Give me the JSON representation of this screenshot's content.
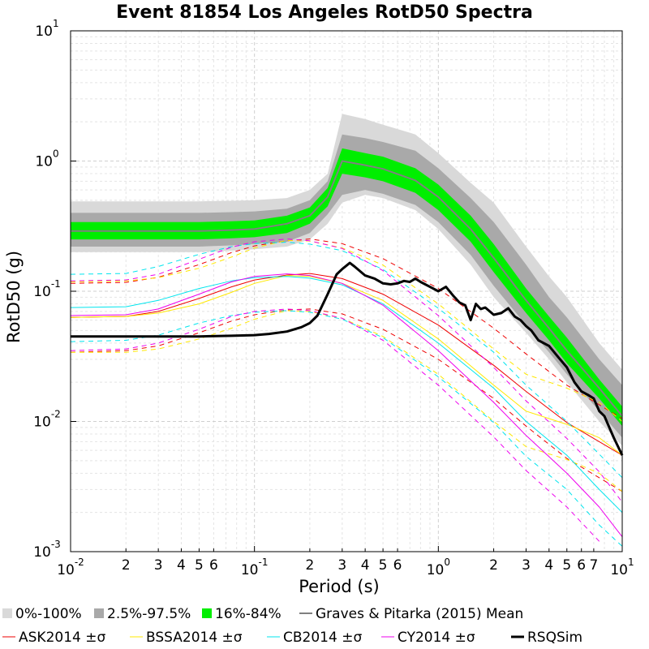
{
  "chart_data": {
    "type": "line",
    "title": "Event 81854 Los Angeles RotD50 Spectra",
    "xlabel": "Period (s)",
    "ylabel": "RotD50 (g)",
    "xscale": "log",
    "yscale": "log",
    "xlim": [
      0.01,
      10
    ],
    "ylim": [
      0.001,
      10
    ],
    "grid": true,
    "legend_position": "bottom",
    "x_major_ticks": [
      {
        "base": "10",
        "exp": "-2"
      },
      {
        "base": "10",
        "exp": "-1"
      },
      {
        "base": "10",
        "exp": "0"
      },
      {
        "base": "10",
        "exp": "1"
      }
    ],
    "y_major_ticks": [
      {
        "base": "10",
        "exp": "-3"
      },
      {
        "base": "10",
        "exp": "-2"
      },
      {
        "base": "10",
        "exp": "-1"
      },
      {
        "base": "10",
        "exp": "0"
      },
      {
        "base": "10",
        "exp": "1"
      }
    ],
    "x_minor_labels": [
      "2",
      "3",
      "4",
      "5",
      "6"
    ],
    "x_minor_labels_decade1": [
      "2",
      "3",
      "4",
      "5",
      "6"
    ],
    "x_minor_labels_decade2": [
      "2",
      "3",
      "4",
      "5",
      "6",
      "7"
    ],
    "x_minor_labels_decade3": [
      "2",
      "3",
      "4",
      "5",
      "6",
      "7"
    ],
    "periods": [
      0.01,
      0.02,
      0.03,
      0.05,
      0.075,
      0.1,
      0.15,
      0.2,
      0.25,
      0.3,
      0.4,
      0.5,
      0.75,
      1.0,
      1.5,
      2.0,
      3.0,
      4.0,
      5.0,
      7.5,
      10.0
    ],
    "bands": [
      {
        "name": "0%-100%",
        "color": "#d9d9d9",
        "lower": [
          0.2,
          0.2,
          0.2,
          0.2,
          0.205,
          0.21,
          0.22,
          0.25,
          0.33,
          0.48,
          0.55,
          0.52,
          0.42,
          0.3,
          0.16,
          0.09,
          0.048,
          0.03,
          0.02,
          0.01,
          0.0065
        ],
        "upper": [
          0.49,
          0.49,
          0.49,
          0.49,
          0.495,
          0.5,
          0.52,
          0.6,
          0.8,
          2.3,
          2.1,
          1.9,
          1.6,
          1.15,
          0.68,
          0.48,
          0.22,
          0.13,
          0.09,
          0.04,
          0.025
        ]
      },
      {
        "name": "2.5%-97.5%",
        "color": "#a9a9a9",
        "lower": [
          0.22,
          0.22,
          0.22,
          0.22,
          0.225,
          0.23,
          0.24,
          0.28,
          0.39,
          0.55,
          0.6,
          0.56,
          0.46,
          0.34,
          0.19,
          0.11,
          0.055,
          0.034,
          0.023,
          0.012,
          0.0075
        ],
        "upper": [
          0.4,
          0.4,
          0.4,
          0.4,
          0.405,
          0.41,
          0.43,
          0.5,
          0.7,
          1.6,
          1.5,
          1.4,
          1.2,
          0.88,
          0.52,
          0.34,
          0.16,
          0.09,
          0.063,
          0.03,
          0.019
        ]
      },
      {
        "name": "16%-84%",
        "color": "#00ee00",
        "lower": [
          0.25,
          0.25,
          0.25,
          0.25,
          0.255,
          0.26,
          0.28,
          0.33,
          0.45,
          0.8,
          0.75,
          0.7,
          0.57,
          0.42,
          0.24,
          0.14,
          0.068,
          0.042,
          0.028,
          0.015,
          0.0092
        ],
        "upper": [
          0.34,
          0.34,
          0.34,
          0.34,
          0.345,
          0.35,
          0.38,
          0.44,
          0.62,
          1.25,
          1.15,
          1.08,
          0.88,
          0.66,
          0.38,
          0.23,
          0.105,
          0.064,
          0.044,
          0.021,
          0.013
        ]
      }
    ],
    "series": [
      {
        "name": "Graves & Pitarka (2015) Mean",
        "color": "#808080",
        "width": 2,
        "dash": "",
        "x": [
          0.01,
          0.02,
          0.03,
          0.05,
          0.075,
          0.1,
          0.15,
          0.2,
          0.25,
          0.3,
          0.4,
          0.5,
          0.75,
          1.0,
          1.5,
          2.0,
          3.0,
          4.0,
          5.0,
          7.5,
          10.0
        ],
        "y": [
          0.29,
          0.29,
          0.29,
          0.29,
          0.295,
          0.3,
          0.33,
          0.38,
          0.53,
          1.0,
          0.93,
          0.87,
          0.71,
          0.53,
          0.3,
          0.18,
          0.085,
          0.052,
          0.035,
          0.018,
          0.011
        ]
      },
      {
        "name": "ASK2014 ±σ",
        "color": "#ee0000",
        "width": 1,
        "dash": "",
        "x": [
          0.01,
          0.02,
          0.03,
          0.05,
          0.075,
          0.1,
          0.15,
          0.2,
          0.3,
          0.5,
          1.0,
          2.0,
          3.0,
          5.0,
          10.0
        ],
        "y": [
          0.063,
          0.064,
          0.07,
          0.088,
          0.108,
          0.122,
          0.133,
          0.137,
          0.125,
          0.095,
          0.055,
          0.027,
          0.017,
          0.0098,
          0.0055
        ]
      },
      {
        "name": "ASK2014 +σ",
        "color": "#ee0000",
        "width": 1,
        "dash": "6,5",
        "x": [
          0.01,
          0.02,
          0.03,
          0.05,
          0.075,
          0.1,
          0.15,
          0.2,
          0.3,
          0.5,
          1.0,
          2.0,
          3.0,
          5.0,
          10.0
        ],
        "y": [
          0.115,
          0.117,
          0.128,
          0.16,
          0.198,
          0.223,
          0.244,
          0.252,
          0.232,
          0.178,
          0.105,
          0.052,
          0.033,
          0.019,
          0.0105
        ]
      },
      {
        "name": "ASK2014 -σ",
        "color": "#ee0000",
        "width": 1,
        "dash": "6,5",
        "x": [
          0.01,
          0.02,
          0.03,
          0.05,
          0.075,
          0.1,
          0.15,
          0.2,
          0.3,
          0.5,
          1.0,
          2.0,
          3.0,
          5.0,
          10.0
        ],
        "y": [
          0.034,
          0.035,
          0.038,
          0.048,
          0.059,
          0.066,
          0.072,
          0.073,
          0.067,
          0.051,
          0.03,
          0.015,
          0.0092,
          0.0052,
          0.0029
        ]
      },
      {
        "name": "BSSA2014 ±σ",
        "color": "#ffe800",
        "width": 1,
        "dash": "",
        "x": [
          0.01,
          0.02,
          0.03,
          0.05,
          0.075,
          0.1,
          0.15,
          0.2,
          0.3,
          0.5,
          1.0,
          2.0,
          3.0,
          5.0,
          7.5,
          10.0
        ],
        "y": [
          0.063,
          0.064,
          0.068,
          0.08,
          0.098,
          0.115,
          0.132,
          0.13,
          0.115,
          0.085,
          0.043,
          0.019,
          0.012,
          0.0095,
          0.0075,
          0.0055
        ]
      },
      {
        "name": "BSSA2014 +σ",
        "color": "#ffe800",
        "width": 1,
        "dash": "6,5",
        "x": [
          0.01,
          0.02,
          0.03,
          0.05,
          0.075,
          0.1,
          0.15,
          0.2,
          0.3,
          0.5,
          1.0,
          2.0,
          3.0,
          5.0,
          7.5,
          10.0
        ],
        "y": [
          0.118,
          0.12,
          0.127,
          0.15,
          0.183,
          0.215,
          0.246,
          0.243,
          0.215,
          0.159,
          0.08,
          0.036,
          0.023,
          0.018,
          0.014,
          0.01
        ]
      },
      {
        "name": "BSSA2014 -σ",
        "color": "#ffe800",
        "width": 1,
        "dash": "6,5",
        "x": [
          0.01,
          0.02,
          0.03,
          0.05,
          0.075,
          0.1,
          0.15,
          0.2,
          0.3,
          0.5,
          1.0,
          2.0,
          3.0,
          5.0,
          7.5,
          10.0
        ],
        "y": [
          0.034,
          0.034,
          0.036,
          0.043,
          0.052,
          0.061,
          0.071,
          0.07,
          0.062,
          0.045,
          0.023,
          0.01,
          0.0064,
          0.0051,
          0.004,
          0.0029
        ]
      },
      {
        "name": "CB2014 ±σ",
        "color": "#00e5ee",
        "width": 1,
        "dash": "",
        "x": [
          0.01,
          0.02,
          0.03,
          0.05,
          0.075,
          0.1,
          0.15,
          0.2,
          0.3,
          0.5,
          1.0,
          2.0,
          3.0,
          5.0,
          7.5,
          10.0
        ],
        "y": [
          0.075,
          0.076,
          0.085,
          0.105,
          0.12,
          0.127,
          0.13,
          0.126,
          0.112,
          0.08,
          0.04,
          0.018,
          0.01,
          0.0055,
          0.003,
          0.002
        ]
      },
      {
        "name": "CB2014 +σ",
        "color": "#00e5ee",
        "width": 1,
        "dash": "6,5",
        "x": [
          0.01,
          0.02,
          0.03,
          0.05,
          0.075,
          0.1,
          0.15,
          0.2,
          0.3,
          0.5,
          1.0,
          2.0,
          3.0,
          5.0,
          7.5,
          10.0
        ],
        "y": [
          0.135,
          0.137,
          0.155,
          0.192,
          0.22,
          0.232,
          0.238,
          0.23,
          0.205,
          0.147,
          0.074,
          0.034,
          0.019,
          0.01,
          0.0056,
          0.0037
        ]
      },
      {
        "name": "CB2014 -σ",
        "color": "#00e5ee",
        "width": 1,
        "dash": "6,5",
        "x": [
          0.01,
          0.02,
          0.03,
          0.05,
          0.075,
          0.1,
          0.15,
          0.2,
          0.3,
          0.5,
          1.0,
          2.0,
          3.0,
          5.0,
          7.5,
          10.0
        ],
        "y": [
          0.041,
          0.042,
          0.046,
          0.057,
          0.065,
          0.069,
          0.071,
          0.069,
          0.061,
          0.044,
          0.022,
          0.0098,
          0.0054,
          0.003,
          0.0016,
          0.0011
        ]
      },
      {
        "name": "CY2014 ±σ",
        "color": "#ee00ee",
        "width": 1,
        "dash": "",
        "x": [
          0.01,
          0.02,
          0.03,
          0.05,
          0.075,
          0.1,
          0.15,
          0.2,
          0.3,
          0.5,
          1.0,
          2.0,
          3.0,
          5.0,
          7.5,
          10.0
        ],
        "y": [
          0.065,
          0.066,
          0.073,
          0.095,
          0.118,
          0.13,
          0.136,
          0.132,
          0.115,
          0.078,
          0.035,
          0.014,
          0.0078,
          0.004,
          0.0022,
          0.0013
        ]
      },
      {
        "name": "CY2014 +σ",
        "color": "#ee00ee",
        "width": 1,
        "dash": "6,5",
        "x": [
          0.01,
          0.02,
          0.03,
          0.05,
          0.075,
          0.1,
          0.15,
          0.2,
          0.3,
          0.5,
          1.0,
          2.0,
          3.0,
          5.0,
          7.5,
          10.0
        ],
        "y": [
          0.12,
          0.122,
          0.135,
          0.176,
          0.218,
          0.24,
          0.252,
          0.244,
          0.213,
          0.144,
          0.065,
          0.026,
          0.0144,
          0.0074,
          0.0041,
          0.0024
        ]
      },
      {
        "name": "CY2014 -σ",
        "color": "#ee00ee",
        "width": 1,
        "dash": "6,5",
        "x": [
          0.01,
          0.02,
          0.03,
          0.05,
          0.075,
          0.1,
          0.15,
          0.2,
          0.3,
          0.5,
          1.0,
          2.0,
          3.0,
          5.0,
          7.5,
          10.0
        ],
        "y": [
          0.035,
          0.036,
          0.04,
          0.051,
          0.064,
          0.07,
          0.073,
          0.071,
          0.062,
          0.042,
          0.019,
          0.0076,
          0.0042,
          0.0022,
          0.0012,
          0.0007
        ]
      },
      {
        "name": "RSQSim",
        "color": "#000000",
        "width": 3,
        "dash": "",
        "x": [
          0.01,
          0.02,
          0.03,
          0.05,
          0.075,
          0.1,
          0.12,
          0.15,
          0.18,
          0.2,
          0.22,
          0.25,
          0.28,
          0.3,
          0.33,
          0.35,
          0.4,
          0.45,
          0.5,
          0.55,
          0.6,
          0.65,
          0.7,
          0.75,
          0.8,
          0.9,
          1.0,
          1.1,
          1.2,
          1.3,
          1.4,
          1.5,
          1.6,
          1.7,
          1.8,
          2.0,
          2.2,
          2.4,
          2.6,
          2.8,
          3.0,
          3.2,
          3.5,
          4.0,
          4.5,
          5.0,
          5.5,
          6.0,
          6.5,
          7.0,
          7.5,
          8.0,
          9.0,
          10.0
        ],
        "y": [
          0.045,
          0.045,
          0.045,
          0.045,
          0.0455,
          0.046,
          0.047,
          0.049,
          0.053,
          0.057,
          0.065,
          0.095,
          0.135,
          0.148,
          0.165,
          0.155,
          0.132,
          0.125,
          0.115,
          0.113,
          0.115,
          0.12,
          0.118,
          0.125,
          0.118,
          0.108,
          0.1,
          0.108,
          0.093,
          0.082,
          0.078,
          0.06,
          0.08,
          0.073,
          0.075,
          0.066,
          0.068,
          0.074,
          0.064,
          0.06,
          0.054,
          0.05,
          0.042,
          0.038,
          0.031,
          0.026,
          0.02,
          0.017,
          0.016,
          0.015,
          0.012,
          0.011,
          0.0075,
          0.0055
        ]
      }
    ],
    "legend": {
      "row1": [
        {
          "label": "0%-100%",
          "kind": "patch",
          "color": "#d9d9d9"
        },
        {
          "label": "2.5%-97.5%",
          "kind": "patch",
          "color": "#a9a9a9"
        },
        {
          "label": "16%-84%",
          "kind": "patch",
          "color": "#00ee00"
        },
        {
          "label": "Graves & Pitarka (2015) Mean",
          "kind": "line",
          "color": "#808080",
          "width": 2
        }
      ],
      "row2": [
        {
          "label": "ASK2014 ±σ",
          "kind": "line",
          "color": "#ee0000",
          "width": 1
        },
        {
          "label": "BSSA2014 ±σ",
          "kind": "line",
          "color": "#ffe800",
          "width": 1
        },
        {
          "label": "CB2014 ±σ",
          "kind": "line",
          "color": "#00e5ee",
          "width": 1
        },
        {
          "label": "CY2014 ±σ",
          "kind": "line",
          "color": "#ee00ee",
          "width": 1
        },
        {
          "label": "RSQSim",
          "kind": "line",
          "color": "#000000",
          "width": 3
        }
      ]
    }
  }
}
